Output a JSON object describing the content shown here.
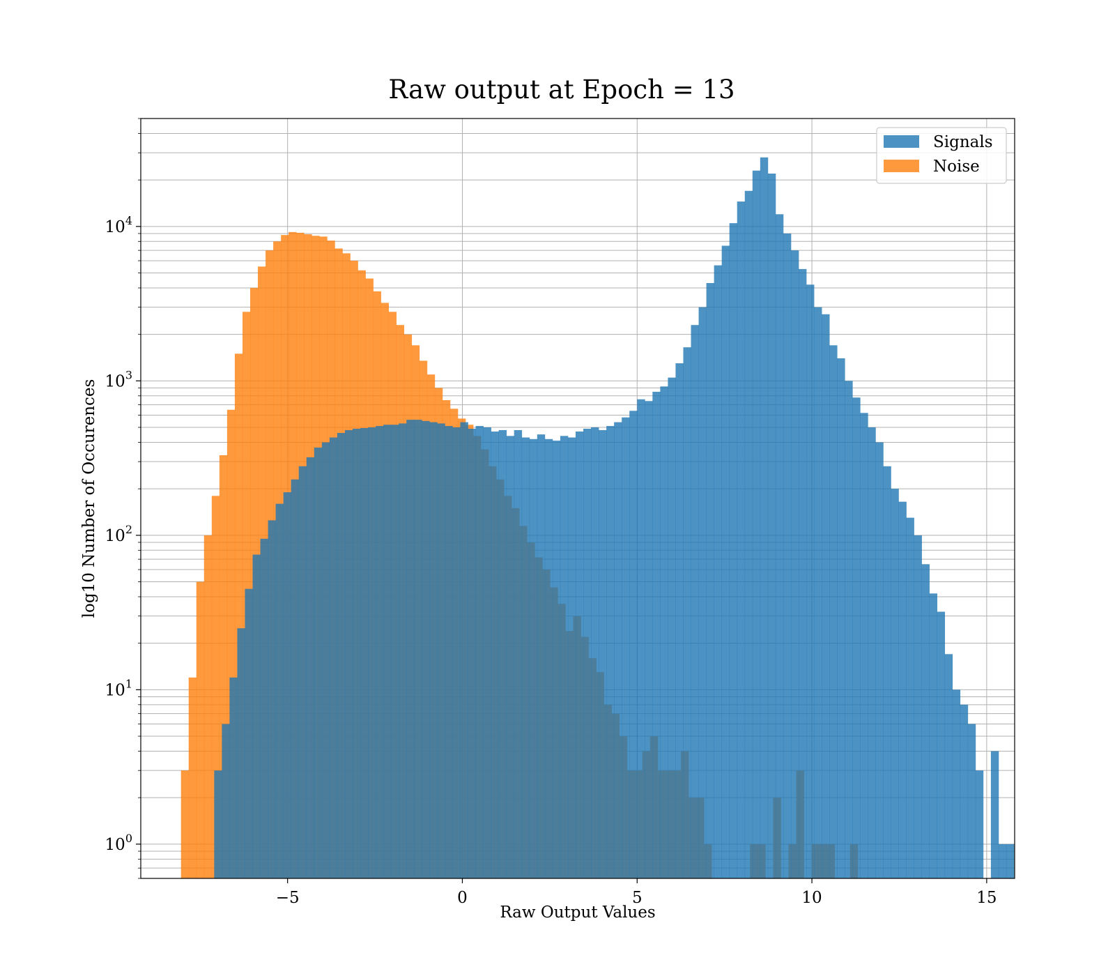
{
  "chart_data": {
    "type": "bar",
    "title": "Raw output at Epoch = 13",
    "xlabel": "Raw Output Values",
    "ylabel": "log10 Number of Occurences",
    "xlim": [
      -9.2,
      15.8
    ],
    "ylim": [
      0.6,
      50000
    ],
    "y_scale": "log",
    "grid": true,
    "legend": "top-right",
    "x_ticks": [
      {
        "value": -5,
        "label": "−5"
      },
      {
        "value": 0,
        "label": "0"
      },
      {
        "value": 5,
        "label": "5"
      },
      {
        "value": 10,
        "label": "10"
      },
      {
        "value": 15,
        "label": "15"
      }
    ],
    "y_ticks": [
      {
        "value": 1,
        "base": "10",
        "exp": "0"
      },
      {
        "value": 10,
        "base": "10",
        "exp": "1"
      },
      {
        "value": 100,
        "base": "10",
        "exp": "2"
      },
      {
        "value": 1000,
        "base": "10",
        "exp": "3"
      },
      {
        "value": 10000,
        "base": "10",
        "exp": "4"
      }
    ],
    "series": [
      {
        "name": "Signals",
        "color": "#1f77b4",
        "x_start": -7.1,
        "bin_width": 0.22,
        "values": [
          3,
          6,
          12,
          25,
          45,
          75,
          95,
          125,
          160,
          190,
          230,
          280,
          320,
          370,
          400,
          430,
          460,
          480,
          490,
          495,
          500,
          510,
          520,
          520,
          530,
          560,
          560,
          550,
          540,
          530,
          510,
          500,
          540,
          490,
          510,
          500,
          470,
          480,
          440,
          480,
          430,
          420,
          450,
          420,
          410,
          440,
          430,
          470,
          490,
          500,
          480,
          510,
          540,
          580,
          640,
          760,
          740,
          850,
          920,
          1050,
          1300,
          1650,
          2300,
          3000,
          4300,
          5600,
          7500,
          10500,
          14500,
          17000,
          23000,
          28000,
          22000,
          12000,
          9000,
          7000,
          5300,
          4200,
          3000,
          2700,
          1700,
          1400,
          1000,
          780,
          620,
          500,
          400,
          280,
          200,
          165,
          130,
          100,
          65,
          42,
          32,
          17,
          10,
          8,
          6,
          3,
          0,
          4,
          1,
          1
        ]
      },
      {
        "name": "Noise",
        "color": "#ff7f0e",
        "x_start": -8.05,
        "bin_width": 0.22,
        "values": [
          3,
          12,
          50,
          100,
          180,
          330,
          650,
          1500,
          2800,
          4000,
          5500,
          7000,
          8000,
          8800,
          9200,
          9100,
          8900,
          8700,
          8600,
          8100,
          7200,
          6700,
          6000,
          5200,
          4600,
          3800,
          3200,
          2800,
          2300,
          2000,
          1700,
          1350,
          1100,
          900,
          750,
          660,
          570,
          520,
          440,
          360,
          280,
          230,
          180,
          150,
          115,
          90,
          72,
          60,
          46,
          36,
          24,
          30,
          22,
          16,
          13,
          8,
          7,
          5,
          3,
          3,
          4,
          5,
          3,
          3,
          3,
          4,
          2,
          2,
          1,
          0,
          0,
          0,
          0,
          0,
          1,
          1,
          0,
          2,
          0,
          1,
          3,
          0,
          1,
          1,
          1,
          0,
          0,
          1
        ]
      }
    ]
  }
}
